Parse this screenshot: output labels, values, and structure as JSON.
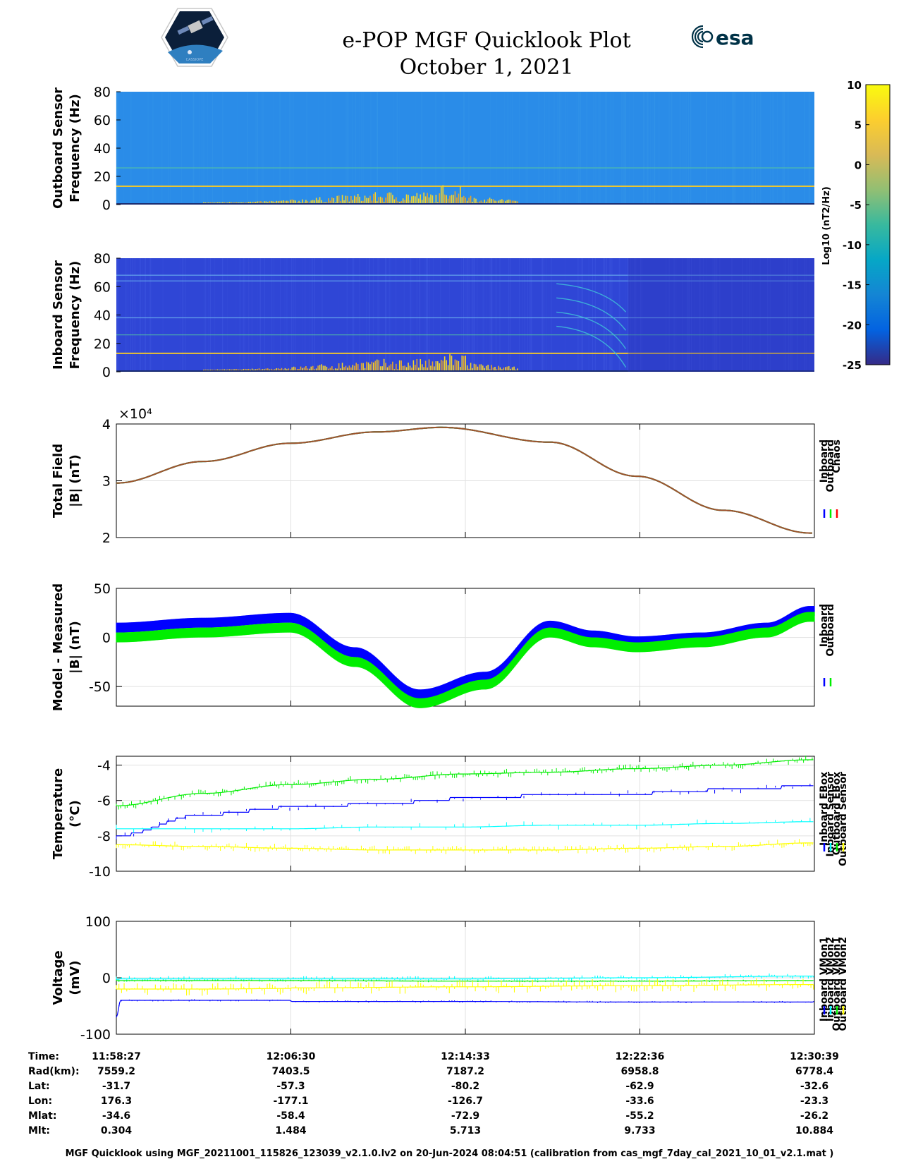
{
  "header": {
    "title": "e-POP MGF Quicklook Plot",
    "date": "October 1, 2021",
    "esa_logo_text": "esa",
    "cassiope_logo_text": "CASSIOPE"
  },
  "colors": {
    "inboard": "#0000ff",
    "outboard": "#00ee00",
    "chaos": "#ff0000",
    "inboard_sensor": "#00ffff",
    "outboard_sensor": "#ffff00",
    "spectro_background_outboard": "#2a8ce8",
    "spectro_background_inboard": "#2f46d6",
    "colorbar_gradient": [
      "#352a87",
      "#0363e1",
      "#1485d4",
      "#06a7c6",
      "#38b99e",
      "#92bf73",
      "#d9ba56",
      "#fcce2e",
      "#f9fb0e"
    ]
  },
  "chart_data": [
    {
      "type": "heatmap",
      "name": "outboard-spectrogram",
      "ylabel": [
        "Outboard Sensor",
        "Frequency (Hz)"
      ],
      "ylim": [
        0,
        80
      ],
      "yticks": [
        0,
        20,
        40,
        60,
        80
      ],
      "features": {
        "lines_hz": [
          13,
          26
        ],
        "low_freq_activity_window": [
          "12:02:00",
          "12:16:30"
        ]
      }
    },
    {
      "type": "heatmap",
      "name": "inboard-spectrogram",
      "ylabel": [
        "Inboard Sensor",
        "Frequency (Hz)"
      ],
      "ylim": [
        0,
        80
      ],
      "yticks": [
        0,
        20,
        40,
        60,
        80
      ],
      "features": {
        "lines_hz": [
          13,
          26,
          38,
          64,
          68
        ]
      }
    },
    {
      "type": "colorbar",
      "label": "Log10 (nT2/Hz)",
      "ylim": [
        -25,
        10
      ],
      "ticks": [
        10,
        5,
        0,
        -5,
        -10,
        -15,
        -20,
        -25
      ]
    },
    {
      "type": "line",
      "name": "total-field",
      "ylabel": [
        "Total Field",
        "|B| (nT)"
      ],
      "ylim": [
        2,
        4
      ],
      "yticks": [
        2,
        3,
        4
      ],
      "exponent_label": "×10⁴",
      "legend": [
        "Inboard",
        "Outboard",
        "Chaos"
      ],
      "x_minutes": [
        0,
        4,
        8,
        12,
        15,
        20,
        24,
        28,
        32
      ],
      "values": [
        2.96,
        3.34,
        3.66,
        3.86,
        3.94,
        3.68,
        3.08,
        2.48,
        2.08
      ]
    },
    {
      "type": "line",
      "name": "model-minus-measured",
      "ylabel": [
        "Model - Measured",
        "|B| (nT)"
      ],
      "ylim": [
        -70,
        50
      ],
      "yticks": [
        -50,
        0,
        50
      ],
      "legend": [
        "Inboard",
        "Outboard"
      ],
      "x_minutes": [
        0,
        4,
        8,
        11,
        14,
        17,
        20,
        22,
        24,
        27,
        30,
        32
      ],
      "series": [
        {
          "name": "Inboard",
          "values": [
            10,
            15,
            20,
            -15,
            -58,
            -40,
            12,
            2,
            -4,
            0,
            10,
            27
          ]
        },
        {
          "name": "Outboard",
          "values": [
            0,
            5,
            10,
            -25,
            -67,
            -48,
            5,
            -5,
            -10,
            -5,
            5,
            21
          ]
        }
      ]
    },
    {
      "type": "line",
      "name": "temperature",
      "ylabel": [
        "Temperature",
        "(°C)"
      ],
      "ylim": [
        -10,
        -3.5
      ],
      "yticks": [
        -10,
        -8,
        -6,
        -4
      ],
      "legend": [
        "Inboard EBox",
        "Inboard Sensor",
        "Outboard EBox",
        "Outboard Sensor"
      ],
      "x_minutes": [
        0,
        4,
        8,
        12,
        16,
        20,
        24,
        28,
        32
      ],
      "series": [
        {
          "name": "Inboard EBox",
          "values": [
            -8.0,
            -6.8,
            -6.4,
            -6.2,
            -5.9,
            -5.7,
            -5.6,
            -5.4,
            -5.2
          ]
        },
        {
          "name": "Inboard Sensor",
          "values": [
            -7.6,
            -7.6,
            -7.6,
            -7.5,
            -7.5,
            -7.4,
            -7.4,
            -7.3,
            -7.2
          ]
        },
        {
          "name": "Outboard EBox",
          "values": [
            -6.3,
            -5.6,
            -5.1,
            -4.8,
            -4.5,
            -4.4,
            -4.2,
            -4.0,
            -3.7
          ]
        },
        {
          "name": "Outboard Sensor",
          "values": [
            -8.5,
            -8.6,
            -8.7,
            -8.8,
            -8.8,
            -8.8,
            -8.7,
            -8.6,
            -8.4
          ]
        }
      ]
    },
    {
      "type": "line",
      "name": "voltage",
      "ylabel": [
        "Voltage",
        "(mV)"
      ],
      "ylim": [
        -100,
        100
      ],
      "yticks": [
        -100,
        0,
        100
      ],
      "legend": [
        "Inboard VMon1",
        "Inboard VMon2",
        "Outboard VMon1",
        "Outboard VMon2"
      ],
      "x_minutes": [
        0,
        0.2,
        4,
        8,
        8.1,
        16,
        24,
        32
      ],
      "series": [
        {
          "name": "Inboard VMon1",
          "values": [
            -70,
            -40,
            -40,
            -40,
            -42,
            -42,
            -43,
            -43
          ]
        },
        {
          "name": "Inboard VMon2",
          "values": [
            -3,
            -2,
            -2,
            -2,
            -2,
            -2,
            0,
            3
          ]
        },
        {
          "name": "Outboard VMon1",
          "values": [
            -5,
            -5,
            -5,
            -5,
            -5,
            -6,
            -6,
            -5
          ]
        },
        {
          "name": "Outboard VMon2",
          "values": [
            -20,
            -20,
            -20,
            -19,
            -18,
            -16,
            -14,
            -12
          ]
        }
      ]
    }
  ],
  "x_axis": {
    "range_minutes": [
      0,
      32.2
    ],
    "tick_minutes": [
      0,
      8.05,
      16.1,
      24.15,
      32.2
    ]
  },
  "table": {
    "row_labels": [
      "Time:",
      "Rad(km):",
      "Lat:",
      "Lon:",
      "Mlat:",
      "Mlt:"
    ],
    "columns": [
      [
        "11:58:27",
        "7559.2",
        "-31.7",
        "176.3",
        "-34.6",
        "0.304"
      ],
      [
        "12:06:30",
        "7403.5",
        "-57.3",
        "-177.1",
        "-58.4",
        "1.484"
      ],
      [
        "12:14:33",
        "7187.2",
        "-80.2",
        "-126.7",
        "-72.9",
        "5.713"
      ],
      [
        "12:22:36",
        "6958.8",
        "-62.9",
        "-33.6",
        "-55.2",
        "9.733"
      ],
      [
        "12:30:39",
        "6778.4",
        "-32.6",
        "-23.3",
        "-26.2",
        "10.884"
      ]
    ]
  },
  "footer": "MGF Quicklook using MGF_20211001_115826_123039_v2.1.0.lv2 on 20-Jun-2024 08:04:51 (calibration from cas_mgf_7day_cal_2021_10_01_v2.1.mat )"
}
